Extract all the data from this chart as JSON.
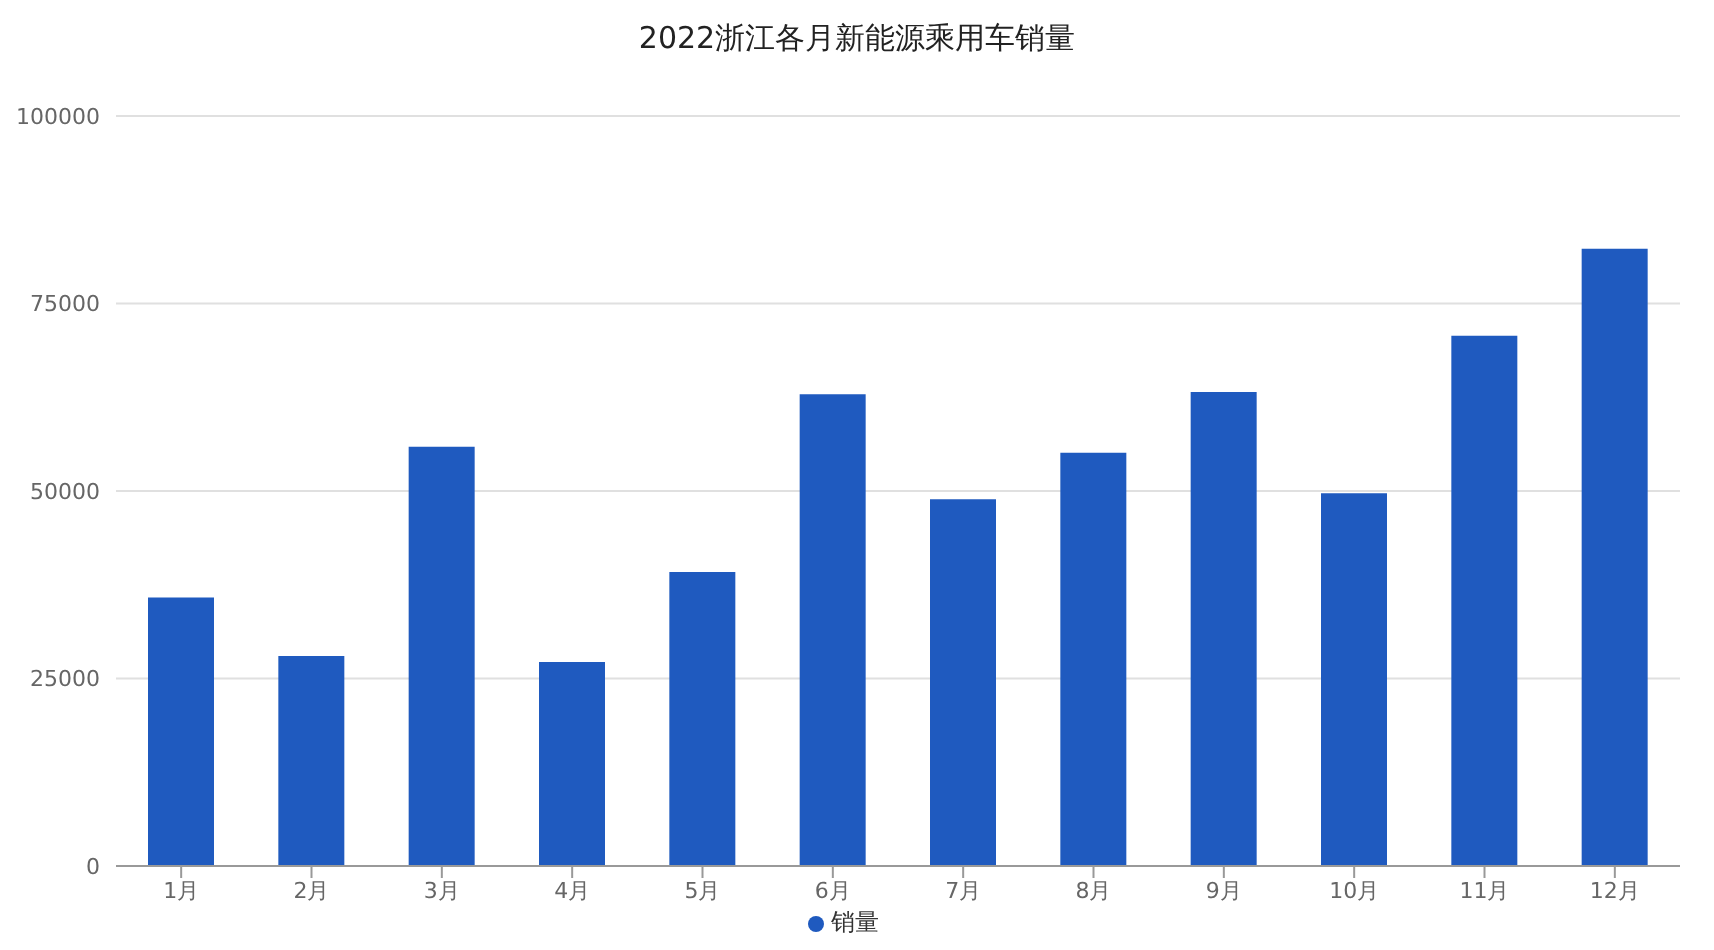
{
  "chart_data": {
    "type": "bar",
    "title": "2022浙江各月新能源乘用车销量",
    "categories": [
      "1月",
      "2月",
      "3月",
      "4月",
      "5月",
      "6月",
      "7月",
      "8月",
      "9月",
      "10月",
      "11月",
      "12月"
    ],
    "series": [
      {
        "name": "销量",
        "color": "#1f5abf",
        "values": [
          35800,
          28000,
          55900,
          27200,
          39200,
          62900,
          48900,
          55100,
          63200,
          49700,
          70700,
          82300
        ]
      }
    ],
    "ylim": [
      0,
      100000
    ],
    "yticks": [
      0,
      25000,
      50000,
      75000,
      100000
    ],
    "grid": "y",
    "legend": "bottom"
  }
}
